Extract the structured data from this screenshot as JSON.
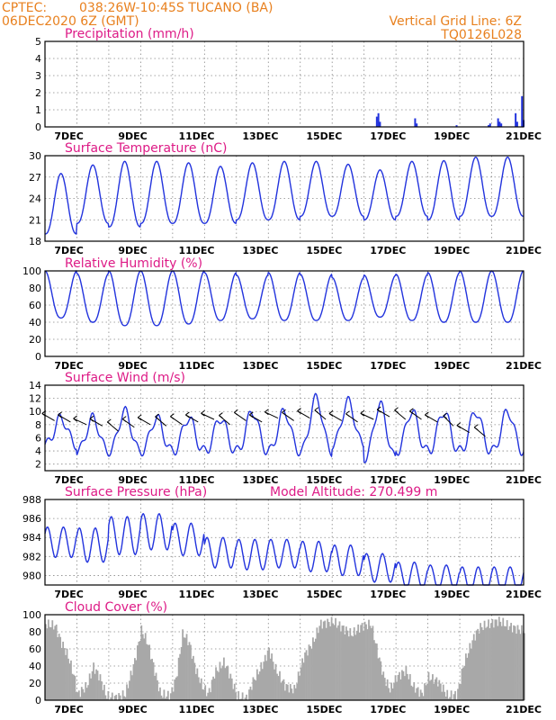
{
  "header": {
    "agency": "CPTEC:",
    "location": "038:26W-10:45S  TUCANO (BA)",
    "run": "06DEC2020 6Z (GMT)",
    "grid_note": "Vertical Grid Line: 6Z",
    "code": "TQ0126L028"
  },
  "colors": {
    "header": "#e8801e",
    "title": "#dd1a86",
    "series": "#2233dd",
    "cloud": "#a8a8a8"
  },
  "chart_data": [
    {
      "id": "precip",
      "type": "bar",
      "title": "Precipitation (mm/h)",
      "ylim": [
        0,
        5
      ],
      "yticks": [
        "0",
        "1",
        "2",
        "3",
        "4",
        "5"
      ],
      "xticks": [
        "7DEC",
        "9DEC",
        "11DEC",
        "13DEC",
        "15DEC",
        "17DEC",
        "19DEC",
        "21DEC"
      ],
      "x_unit": "day since 06DEC 06Z",
      "points": [
        [
          10.4,
          0.6
        ],
        [
          10.45,
          0.8
        ],
        [
          10.5,
          0.3
        ],
        [
          11.6,
          0.5
        ],
        [
          11.65,
          0.2
        ],
        [
          12.9,
          0.1
        ],
        [
          13.9,
          0.1
        ],
        [
          13.95,
          0.2
        ],
        [
          14.2,
          0.5
        ],
        [
          14.25,
          0.3
        ],
        [
          14.3,
          0.2
        ],
        [
          14.75,
          0.8
        ],
        [
          14.8,
          0.3
        ],
        [
          14.95,
          1.8
        ],
        [
          15.0,
          0.4
        ]
      ]
    },
    {
      "id": "temp",
      "type": "line",
      "title": "Surface Temperature (nC)",
      "ylim": [
        18,
        30
      ],
      "yticks": [
        "18",
        "21",
        "24",
        "27",
        "30"
      ],
      "xticks": [
        "7DEC",
        "9DEC",
        "11DEC",
        "13DEC",
        "15DEC",
        "17DEC",
        "19DEC",
        "21DEC"
      ],
      "min_val": [
        19,
        20.5,
        20,
        20.5,
        20.5,
        20.5,
        21,
        21,
        21.5,
        21.5,
        21,
        21.5,
        21,
        21.5
      ],
      "max_val": [
        27.5,
        28.7,
        29.2,
        29.2,
        29,
        28.5,
        29,
        29.2,
        29.2,
        28.8,
        28,
        29.2,
        29.3,
        29.8
      ]
    },
    {
      "id": "rh",
      "type": "line",
      "title": "Relative Humidity (%)",
      "ylim": [
        0,
        100
      ],
      "yticks": [
        "0",
        "20",
        "40",
        "60",
        "80",
        "100"
      ],
      "xticks": [
        "7DEC",
        "9DEC",
        "11DEC",
        "13DEC",
        "15DEC",
        "17DEC",
        "19DEC",
        "21DEC"
      ],
      "min_val": [
        45,
        40,
        36,
        36,
        38,
        42,
        44,
        42,
        42,
        42,
        46,
        42,
        40,
        40
      ],
      "max_val": [
        100,
        97,
        100,
        100,
        100,
        98,
        95,
        98,
        96,
        92,
        95,
        96,
        98,
        100
      ]
    },
    {
      "id": "wind",
      "type": "line",
      "title": "Surface Wind (m/s)",
      "ylim": [
        1,
        14
      ],
      "yticks": [
        "2",
        "4",
        "6",
        "8",
        "10",
        "12",
        "14"
      ],
      "xticks": [
        "7DEC",
        "9DEC",
        "11DEC",
        "13DEC",
        "15DEC",
        "17DEC",
        "19DEC",
        "21DEC"
      ],
      "min_val": [
        5,
        4,
        4,
        4,
        4,
        4,
        4,
        4,
        4,
        5,
        3,
        4,
        4,
        4
      ],
      "max_val": [
        9,
        9,
        10,
        9,
        9,
        9,
        10,
        10,
        12,
        11.5,
        11,
        10,
        10,
        10
      ],
      "arrows": [
        [
          0.3,
          -30,
          8.6
        ],
        [
          0.8,
          -30,
          8.4
        ],
        [
          1.3,
          -25,
          8.0
        ],
        [
          1.8,
          -30,
          7.8
        ],
        [
          2.3,
          -40,
          7.0
        ],
        [
          2.8,
          -35,
          7.6
        ],
        [
          3.3,
          -30,
          8.0
        ],
        [
          3.8,
          -40,
          7.8
        ],
        [
          4.3,
          -35,
          8.0
        ],
        [
          4.8,
          -30,
          8.4
        ],
        [
          5.3,
          -25,
          8.8
        ],
        [
          5.8,
          -40,
          8.0
        ],
        [
          6.3,
          -35,
          8.6
        ],
        [
          6.8,
          -30,
          8.4
        ],
        [
          7.3,
          -25,
          9.0
        ],
        [
          7.8,
          -35,
          8.6
        ],
        [
          8.3,
          -30,
          9.0
        ],
        [
          8.8,
          -40,
          8.8
        ],
        [
          9.3,
          -30,
          8.6
        ],
        [
          9.8,
          -35,
          8.4
        ],
        [
          10.3,
          -25,
          8.8
        ],
        [
          10.8,
          -30,
          9.2
        ],
        [
          11.3,
          -40,
          8.8
        ],
        [
          11.8,
          -35,
          8.8
        ],
        [
          12.3,
          -30,
          8.4
        ],
        [
          12.8,
          -45,
          7.8
        ],
        [
          13.3,
          -30,
          6.8
        ],
        [
          13.8,
          -40,
          6.2
        ]
      ]
    },
    {
      "id": "pressure",
      "type": "line",
      "title": "Surface Pressure (hPa)",
      "annotation": "Model Altitude: 270.499  m",
      "ylim": [
        979,
        988
      ],
      "yticks": [
        "980",
        "982",
        "984",
        "986",
        "988"
      ],
      "xticks": [
        "7DEC",
        "9DEC",
        "11DEC",
        "13DEC",
        "15DEC",
        "17DEC",
        "19DEC",
        "21DEC"
      ],
      "mean_val": [
        983.5,
        983.2,
        984.2,
        984.6,
        983.8,
        982.4,
        982.2,
        982.3,
        982.0,
        981.6,
        980.8,
        980.0,
        979.8,
        979.5
      ],
      "amp_val": [
        1.6,
        1.8,
        2.0,
        1.9,
        1.7,
        1.6,
        1.6,
        1.5,
        1.6,
        1.6,
        1.5,
        1.4,
        1.3,
        1.4
      ]
    },
    {
      "id": "cloud",
      "type": "area",
      "title": "Cloud Cover (%)",
      "ylim": [
        0,
        100
      ],
      "yticks": [
        "0",
        "20",
        "40",
        "60",
        "80",
        "100"
      ],
      "xticks": [
        "7DEC",
        "9DEC",
        "11DEC",
        "13DEC",
        "15DEC",
        "17DEC",
        "19DEC",
        "21DEC"
      ],
      "profile": [
        [
          0.0,
          92
        ],
        [
          0.3,
          90
        ],
        [
          0.5,
          70
        ],
        [
          0.7,
          55
        ],
        [
          0.9,
          30
        ],
        [
          1.0,
          10
        ],
        [
          1.3,
          20
        ],
        [
          1.5,
          42
        ],
        [
          1.7,
          30
        ],
        [
          1.9,
          8
        ],
        [
          2.2,
          6
        ],
        [
          2.5,
          10
        ],
        [
          2.8,
          50
        ],
        [
          3.0,
          85
        ],
        [
          3.2,
          70
        ],
        [
          3.4,
          40
        ],
        [
          3.6,
          10
        ],
        [
          3.9,
          8
        ],
        [
          4.1,
          30
        ],
        [
          4.3,
          82
        ],
        [
          4.5,
          70
        ],
        [
          4.7,
          40
        ],
        [
          4.9,
          20
        ],
        [
          5.1,
          10
        ],
        [
          5.3,
          35
        ],
        [
          5.6,
          48
        ],
        [
          5.8,
          30
        ],
        [
          6.0,
          8
        ],
        [
          6.3,
          5
        ],
        [
          6.5,
          25
        ],
        [
          6.8,
          45
        ],
        [
          7.0,
          62
        ],
        [
          7.2,
          40
        ],
        [
          7.5,
          20
        ],
        [
          7.8,
          15
        ],
        [
          8.1,
          55
        ],
        [
          8.4,
          72
        ],
        [
          8.6,
          92
        ],
        [
          9.0,
          95
        ],
        [
          9.3,
          88
        ],
        [
          9.6,
          80
        ],
        [
          9.9,
          90
        ],
        [
          10.2,
          92
        ],
        [
          10.4,
          60
        ],
        [
          10.6,
          30
        ],
        [
          10.8,
          15
        ],
        [
          11.0,
          30
        ],
        [
          11.3,
          38
        ],
        [
          11.5,
          20
        ],
        [
          11.8,
          10
        ],
        [
          12.0,
          30
        ],
        [
          12.3,
          25
        ],
        [
          12.6,
          8
        ],
        [
          12.9,
          10
        ],
        [
          13.1,
          45
        ],
        [
          13.4,
          75
        ],
        [
          13.6,
          88
        ],
        [
          13.9,
          92
        ],
        [
          14.2,
          96
        ],
        [
          14.5,
          90
        ],
        [
          14.8,
          86
        ],
        [
          15.0,
          84
        ]
      ]
    }
  ]
}
